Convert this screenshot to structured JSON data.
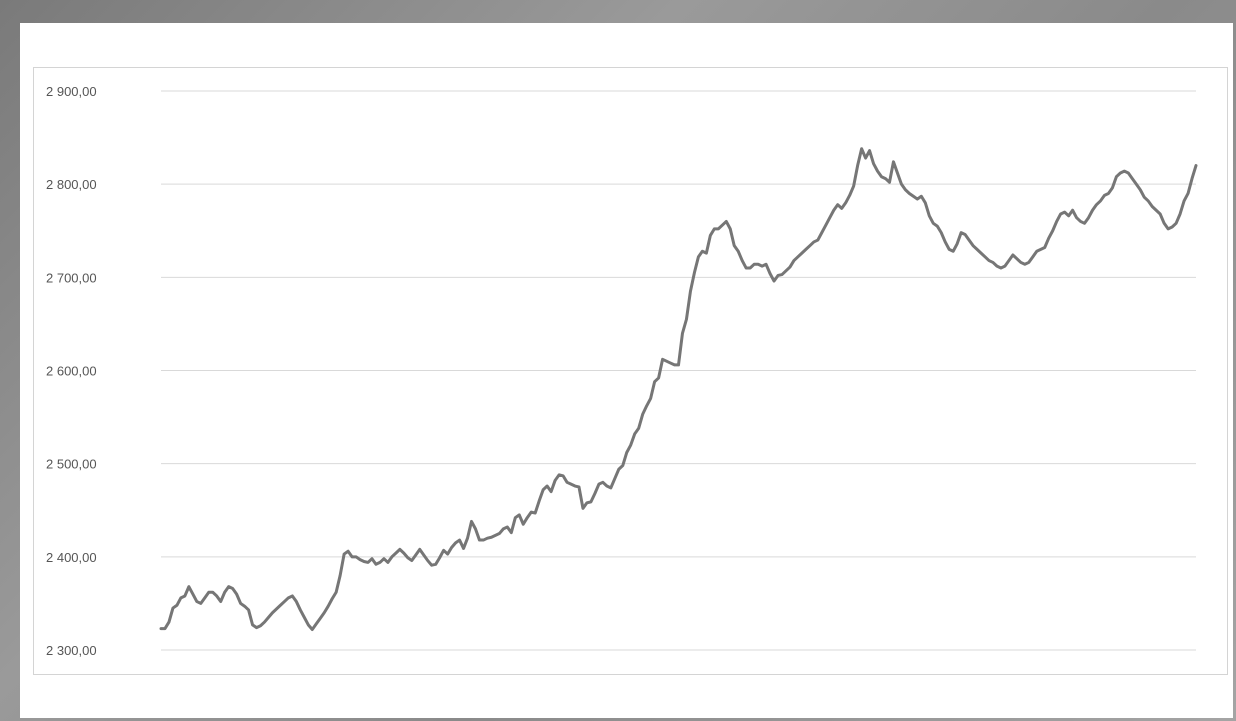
{
  "chart_data": {
    "type": "line",
    "title": "",
    "xlabel": "",
    "ylabel": "",
    "ylim": [
      2300,
      2900
    ],
    "yticks": [
      2300,
      2400,
      2500,
      2600,
      2700,
      2800,
      2900
    ],
    "ytick_labels": [
      "2 300,00",
      "2 400,00",
      "2 500,00",
      "2 600,00",
      "2 700,00",
      "2 800,00",
      "2 900,00"
    ],
    "grid": true,
    "legend": "none",
    "line_color": "#767676",
    "series": [
      {
        "values": [
          2323,
          2323,
          2330,
          2345,
          2348,
          2356,
          2358,
          2368,
          2360,
          2352,
          2350,
          2356,
          2362,
          2362,
          2358,
          2352,
          2362,
          2368,
          2366,
          2360,
          2350,
          2347,
          2343,
          2327,
          2324,
          2326,
          2330,
          2335,
          2340,
          2344,
          2348,
          2352,
          2356,
          2358,
          2352,
          2343,
          2335,
          2327,
          2322,
          2328,
          2334,
          2340,
          2347,
          2355,
          2362,
          2380,
          2403,
          2406,
          2400,
          2400,
          2397,
          2395,
          2394,
          2398,
          2392,
          2394,
          2398,
          2394,
          2400,
          2404,
          2408,
          2404,
          2399,
          2396,
          2402,
          2408,
          2402,
          2396,
          2391,
          2392,
          2399,
          2407,
          2403,
          2410,
          2415,
          2418,
          2409,
          2420,
          2438,
          2430,
          2418,
          2418,
          2420,
          2421,
          2423,
          2425,
          2430,
          2432,
          2426,
          2442,
          2445,
          2435,
          2442,
          2448,
          2447,
          2460,
          2472,
          2476,
          2470,
          2482,
          2488,
          2487,
          2480,
          2478,
          2476,
          2475,
          2452,
          2458,
          2459,
          2468,
          2478,
          2480,
          2476,
          2474,
          2484,
          2494,
          2498,
          2512,
          2520,
          2532,
          2538,
          2553,
          2562,
          2570,
          2588,
          2592,
          2612,
          2610,
          2608,
          2606,
          2606,
          2640,
          2655,
          2685,
          2705,
          2722,
          2728,
          2726,
          2745,
          2752,
          2752,
          2756,
          2760,
          2752,
          2734,
          2728,
          2718,
          2710,
          2710,
          2714,
          2714,
          2712,
          2714,
          2704,
          2696,
          2702,
          2703,
          2707,
          2711,
          2718,
          2722,
          2726,
          2730,
          2734,
          2738,
          2740,
          2748,
          2756,
          2764,
          2772,
          2778,
          2774,
          2780,
          2788,
          2798,
          2820,
          2838,
          2828,
          2836,
          2822,
          2814,
          2808,
          2806,
          2802,
          2824,
          2812,
          2800,
          2794,
          2790,
          2787,
          2784,
          2787,
          2780,
          2766,
          2758,
          2755,
          2748,
          2738,
          2730,
          2728,
          2736,
          2748,
          2746,
          2740,
          2734,
          2730,
          2726,
          2722,
          2718,
          2716,
          2712,
          2710,
          2712,
          2718,
          2724,
          2720,
          2716,
          2714,
          2716,
          2722,
          2728,
          2730,
          2732,
          2742,
          2750,
          2760,
          2768,
          2770,
          2766,
          2772,
          2764,
          2760,
          2758,
          2764,
          2772,
          2778,
          2782,
          2788,
          2790,
          2796,
          2808,
          2812,
          2814,
          2812,
          2806,
          2800,
          2794,
          2786,
          2782,
          2776,
          2772,
          2768,
          2758,
          2752,
          2754,
          2758,
          2768,
          2782,
          2790,
          2806,
          2820
        ]
      }
    ]
  }
}
